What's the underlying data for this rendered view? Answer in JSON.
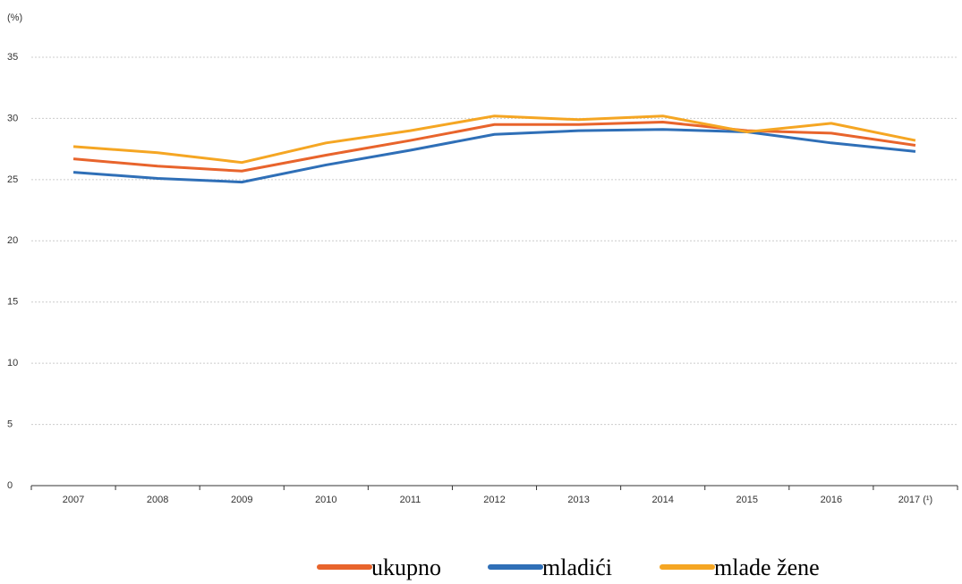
{
  "chart_data": {
    "type": "line",
    "y_label": "(%)",
    "categories": [
      "2007",
      "2008",
      "2009",
      "2010",
      "2011",
      "2012",
      "2013",
      "2014",
      "2015",
      "2016",
      "2017 (¹)"
    ],
    "series": [
      {
        "name": "ukupno",
        "color": "#e8642c",
        "values": [
          26.7,
          26.1,
          25.7,
          27.0,
          28.2,
          29.5,
          29.5,
          29.7,
          29.0,
          28.8,
          27.8
        ]
      },
      {
        "name": "mladići",
        "color": "#2f6fb7",
        "values": [
          25.6,
          25.1,
          24.8,
          26.2,
          27.4,
          28.7,
          29.0,
          29.1,
          28.9,
          28.0,
          27.3
        ]
      },
      {
        "name": "mlade žene",
        "color": "#f5a623",
        "values": [
          27.7,
          27.2,
          26.4,
          28.0,
          29.0,
          30.2,
          29.9,
          30.2,
          28.9,
          29.6,
          28.2
        ]
      }
    ],
    "ylim": [
      0,
      35
    ],
    "yticks": [
      0,
      5,
      10,
      15,
      20,
      25,
      30,
      35
    ],
    "grid": true,
    "legend": "bottom"
  }
}
